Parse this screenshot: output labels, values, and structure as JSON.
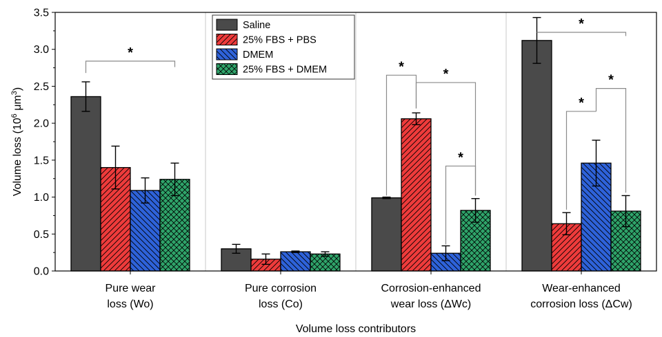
{
  "chart_data": {
    "type": "bar",
    "title": "",
    "ylabel": "Volume loss (10",
    "ylabel_sup": "6",
    "ylabel_unit": " μm",
    "ylabel_unit_sup": "3",
    "ylabel_close": ")",
    "xlabel": "Volume loss contributors",
    "ylim": [
      0,
      3.5
    ],
    "yticks": [
      "0.0",
      "0.5",
      "1.0",
      "1.5",
      "2.0",
      "2.5",
      "3.0",
      "3.5"
    ],
    "categories": [
      [
        "Pure wear",
        "loss (Wo)"
      ],
      [
        "Pure corrosion",
        "loss (Co)"
      ],
      [
        "Corrosion-enhanced",
        "wear loss (ΔWc)"
      ],
      [
        "Wear-enhanced",
        "corrosion loss (ΔCw)"
      ]
    ],
    "series": [
      {
        "name": "Saline",
        "color": "#4a4a4a",
        "pattern": "none",
        "values": [
          2.36,
          0.3,
          0.99,
          3.12
        ],
        "errors": [
          0.2,
          0.06,
          0.01,
          0.31
        ]
      },
      {
        "name": "25% FBS + PBS",
        "color": "#ee3b3b",
        "pattern": "diag-right",
        "values": [
          1.4,
          0.16,
          2.06,
          0.64
        ],
        "errors": [
          0.29,
          0.07,
          0.08,
          0.15
        ]
      },
      {
        "name": "DMEM",
        "color": "#2e62d9",
        "pattern": "diag-left",
        "values": [
          1.09,
          0.26,
          0.24,
          1.46
        ],
        "errors": [
          0.17,
          0.01,
          0.1,
          0.31
        ]
      },
      {
        "name": "25% FBS + DMEM",
        "color": "#2fa46a",
        "pattern": "cross",
        "values": [
          1.24,
          0.23,
          0.82,
          0.81
        ],
        "errors": [
          0.22,
          0.03,
          0.16,
          0.21
        ]
      }
    ],
    "grid": false,
    "legend_position": "top-center",
    "significance_marker": "*"
  }
}
